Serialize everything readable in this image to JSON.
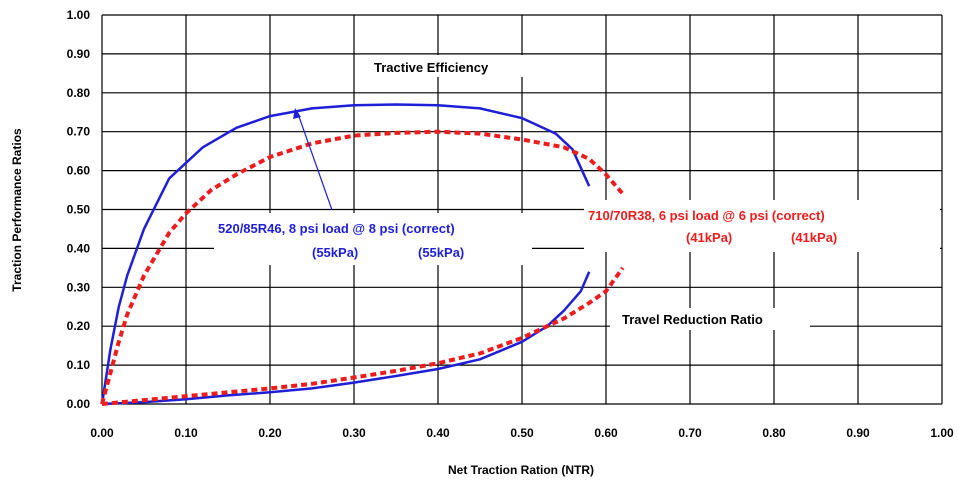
{
  "chart_data": {
    "type": "line",
    "title": "",
    "xlabel": "Net Traction Ration (NTR)",
    "ylabel": "Traction Performance Ratios",
    "xlim": [
      0,
      1
    ],
    "ylim": [
      0,
      1
    ],
    "grid": true,
    "x_ticks": [
      "0.00",
      "0.10",
      "0.20",
      "0.30",
      "0.40",
      "0.50",
      "0.60",
      "0.70",
      "0.80",
      "0.90",
      "1.00"
    ],
    "y_ticks": [
      "0.00",
      "0.10",
      "0.20",
      "0.30",
      "0.40",
      "0.50",
      "0.60",
      "0.70",
      "0.80",
      "0.90",
      "1.00"
    ],
    "colors": {
      "blue": "#1f1fd6",
      "red": "#ee1c1c"
    },
    "series": [
      {
        "key": "te_blue",
        "color": "#1f1fd6",
        "dashed": false,
        "x": [
          0.0,
          0.01,
          0.02,
          0.03,
          0.05,
          0.08,
          0.12,
          0.16,
          0.2,
          0.25,
          0.3,
          0.35,
          0.4,
          0.45,
          0.5,
          0.54,
          0.56,
          0.58
        ],
        "y": [
          0.0,
          0.14,
          0.25,
          0.33,
          0.45,
          0.58,
          0.66,
          0.71,
          0.74,
          0.76,
          0.768,
          0.77,
          0.768,
          0.76,
          0.735,
          0.695,
          0.655,
          0.56
        ]
      },
      {
        "key": "te_red",
        "color": "#ee1c1c",
        "dashed": true,
        "x": [
          0.0,
          0.01,
          0.02,
          0.03,
          0.05,
          0.08,
          0.1,
          0.13,
          0.16,
          0.2,
          0.25,
          0.3,
          0.35,
          0.4,
          0.45,
          0.5,
          0.55,
          0.58,
          0.6,
          0.62
        ],
        "y": [
          0.0,
          0.08,
          0.16,
          0.23,
          0.33,
          0.44,
          0.49,
          0.55,
          0.59,
          0.635,
          0.67,
          0.69,
          0.697,
          0.7,
          0.695,
          0.68,
          0.66,
          0.63,
          0.59,
          0.54
        ]
      },
      {
        "key": "trr_blue",
        "color": "#1f1fd6",
        "dashed": false,
        "x": [
          0.0,
          0.05,
          0.1,
          0.15,
          0.2,
          0.25,
          0.3,
          0.35,
          0.4,
          0.45,
          0.5,
          0.53,
          0.55,
          0.57,
          0.58
        ],
        "y": [
          0.0,
          0.005,
          0.012,
          0.022,
          0.03,
          0.04,
          0.055,
          0.072,
          0.09,
          0.115,
          0.16,
          0.2,
          0.24,
          0.29,
          0.34
        ]
      },
      {
        "key": "trr_red",
        "color": "#ee1c1c",
        "dashed": true,
        "x": [
          0.0,
          0.05,
          0.1,
          0.15,
          0.2,
          0.25,
          0.3,
          0.35,
          0.4,
          0.45,
          0.5,
          0.55,
          0.58,
          0.6,
          0.62
        ],
        "y": [
          0.0,
          0.01,
          0.02,
          0.03,
          0.04,
          0.052,
          0.068,
          0.085,
          0.105,
          0.13,
          0.17,
          0.22,
          0.26,
          0.29,
          0.35
        ]
      }
    ],
    "annotations": {
      "tractive_efficiency": "Tractive Efficiency",
      "travel_reduction_ratio": "Travel Reduction Ratio",
      "blue_line1": "520/85R46, 8 psi load @ 8 psi (correct)",
      "blue_line2a": "(55kPa)",
      "blue_line2b": "(55kPa)",
      "red_line1": "710/70R38, 6 psi load @ 6 psi (correct)",
      "red_line2a": "(41kPa)",
      "red_line2b": "(41kPa)"
    }
  }
}
